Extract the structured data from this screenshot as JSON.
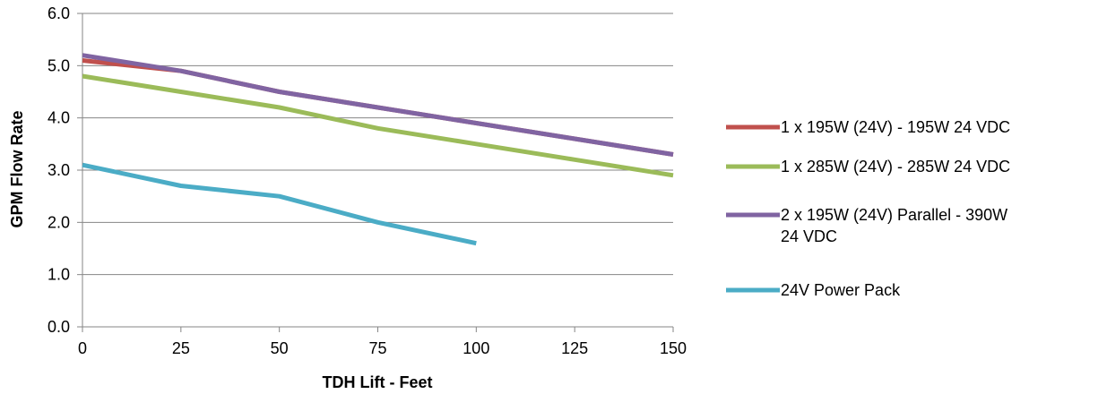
{
  "chart_data": {
    "type": "line",
    "xlabel": "TDH Lift - Feet",
    "ylabel": "GPM Flow Rate",
    "xlim": [
      0,
      150
    ],
    "ylim": [
      0.0,
      6.0
    ],
    "x_ticks": [
      "0",
      "25",
      "50",
      "75",
      "100",
      "125",
      "150"
    ],
    "y_ticks": [
      "0.0",
      "1.0",
      "2.0",
      "3.0",
      "4.0",
      "5.0",
      "6.0"
    ],
    "grid": "horizontal",
    "legend_position": "right",
    "series": [
      {
        "name": "1 x 195W (24V) - 195W 24 VDC",
        "legend_lines": [
          "1 x 195W (24V) - 195W 24 VDC"
        ],
        "color": "#C0504D",
        "x": [
          0,
          25,
          50,
          75,
          100,
          125,
          150
        ],
        "values": [
          5.1,
          4.9,
          4.5,
          4.2,
          3.9,
          3.6,
          3.3
        ]
      },
      {
        "name": "1 x 285W (24V) - 285W 24 VDC",
        "legend_lines": [
          "1 x 285W (24V) - 285W 24 VDC"
        ],
        "color": "#9BBB59",
        "x": [
          0,
          25,
          50,
          75,
          100,
          125,
          150
        ],
        "values": [
          4.8,
          4.5,
          4.2,
          3.8,
          3.5,
          3.2,
          2.9
        ]
      },
      {
        "name": "2 x 195W (24V) Parallel - 390W 24 VDC",
        "legend_lines": [
          "2 x 195W (24V) Parallel - 390W",
          "24 VDC"
        ],
        "color": "#8064A2",
        "x": [
          0,
          25,
          50,
          75,
          100,
          125,
          150
        ],
        "values": [
          5.2,
          4.9,
          4.5,
          4.2,
          3.9,
          3.6,
          3.3
        ]
      },
      {
        "name": "24V Power Pack",
        "legend_lines": [
          "24V Power Pack"
        ],
        "color": "#4BACC6",
        "x": [
          0,
          25,
          50,
          75,
          100
        ],
        "values": [
          3.1,
          2.7,
          2.5,
          2.0,
          1.6
        ]
      }
    ]
  }
}
